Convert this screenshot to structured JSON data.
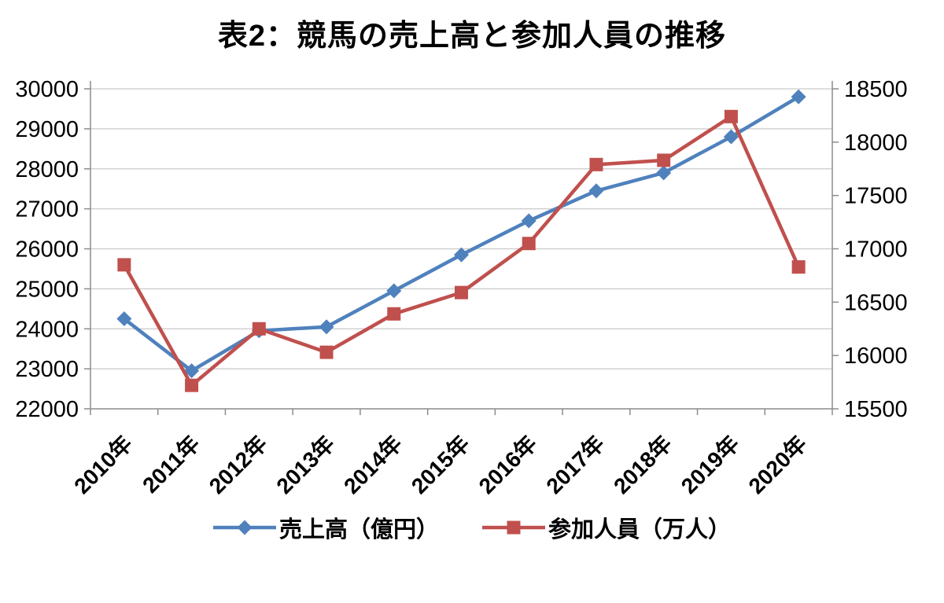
{
  "title": "表2：競馬の売上高と参加人員の推移",
  "chart_data": {
    "type": "line",
    "categories": [
      "2010年",
      "2011年",
      "2012年",
      "2013年",
      "2014年",
      "2015年",
      "2016年",
      "2017年",
      "2018年",
      "2019年",
      "2020年"
    ],
    "series": [
      {
        "name": "売上高（億円）",
        "axis": "left",
        "color": "#4F81BD",
        "marker": "diamond",
        "values": [
          24250,
          22950,
          23950,
          24050,
          24950,
          25850,
          26700,
          27450,
          27900,
          28800,
          29800
        ]
      },
      {
        "name": "参加人員（万人）",
        "axis": "right",
        "color": "#C0504D",
        "marker": "square",
        "values": [
          16850,
          15720,
          16250,
          16030,
          16390,
          16590,
          17050,
          17790,
          17830,
          18240,
          16830
        ]
      }
    ],
    "left_axis": {
      "min": 22000,
      "max": 30000,
      "step": 1000
    },
    "right_axis": {
      "min": 15500,
      "max": 18500,
      "step": 500
    },
    "grid": true,
    "legend_position": "bottom",
    "grid_color": "#c9c9c9",
    "axis_color": "#8c8c8c"
  }
}
